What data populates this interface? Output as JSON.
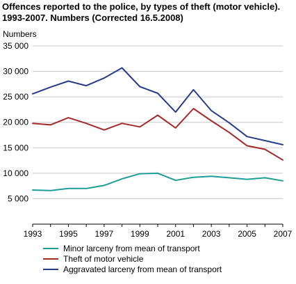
{
  "chart_data": {
    "type": "line",
    "title": "Offences reported to the police, by types of theft (motor vehicle). 1993-2007. Numbers (Corrected 16.5.2008)",
    "ylabel": "Numbers",
    "xlabel": "",
    "x": [
      1993,
      1994,
      1995,
      1996,
      1997,
      1998,
      1999,
      2000,
      2001,
      2002,
      2003,
      2004,
      2005,
      2006,
      2007
    ],
    "x_tick_labels": [
      "1993",
      "1995",
      "1997",
      "1999",
      "2001",
      "2003",
      "2005",
      "2007"
    ],
    "y_tick_labels": [
      "5 000",
      "10 000",
      "15 000",
      "20 000",
      "25 000",
      "30 000",
      "35 000"
    ],
    "ylim": [
      0,
      35000
    ],
    "grid": true,
    "legend_position": "bottom",
    "series": [
      {
        "name": "Minor larceny from mean of transport",
        "color": "#1e9e96",
        "values": [
          6700,
          6600,
          7000,
          7000,
          7600,
          8900,
          9900,
          10000,
          8600,
          9200,
          9400,
          9100,
          8800,
          9100,
          8500
        ]
      },
      {
        "name": "Theft of motor vehicle",
        "color": "#a52a2a",
        "values": [
          19800,
          19500,
          20900,
          19800,
          18500,
          19800,
          19100,
          21400,
          18900,
          22700,
          20300,
          18000,
          15400,
          14700,
          12600
        ]
      },
      {
        "name": "Aggravated larceny from mean of transport",
        "color": "#283c8c",
        "values": [
          25600,
          26900,
          28100,
          27200,
          28700,
          30700,
          27000,
          25700,
          22000,
          26400,
          22300,
          19900,
          17200,
          16400,
          15600
        ]
      }
    ]
  }
}
